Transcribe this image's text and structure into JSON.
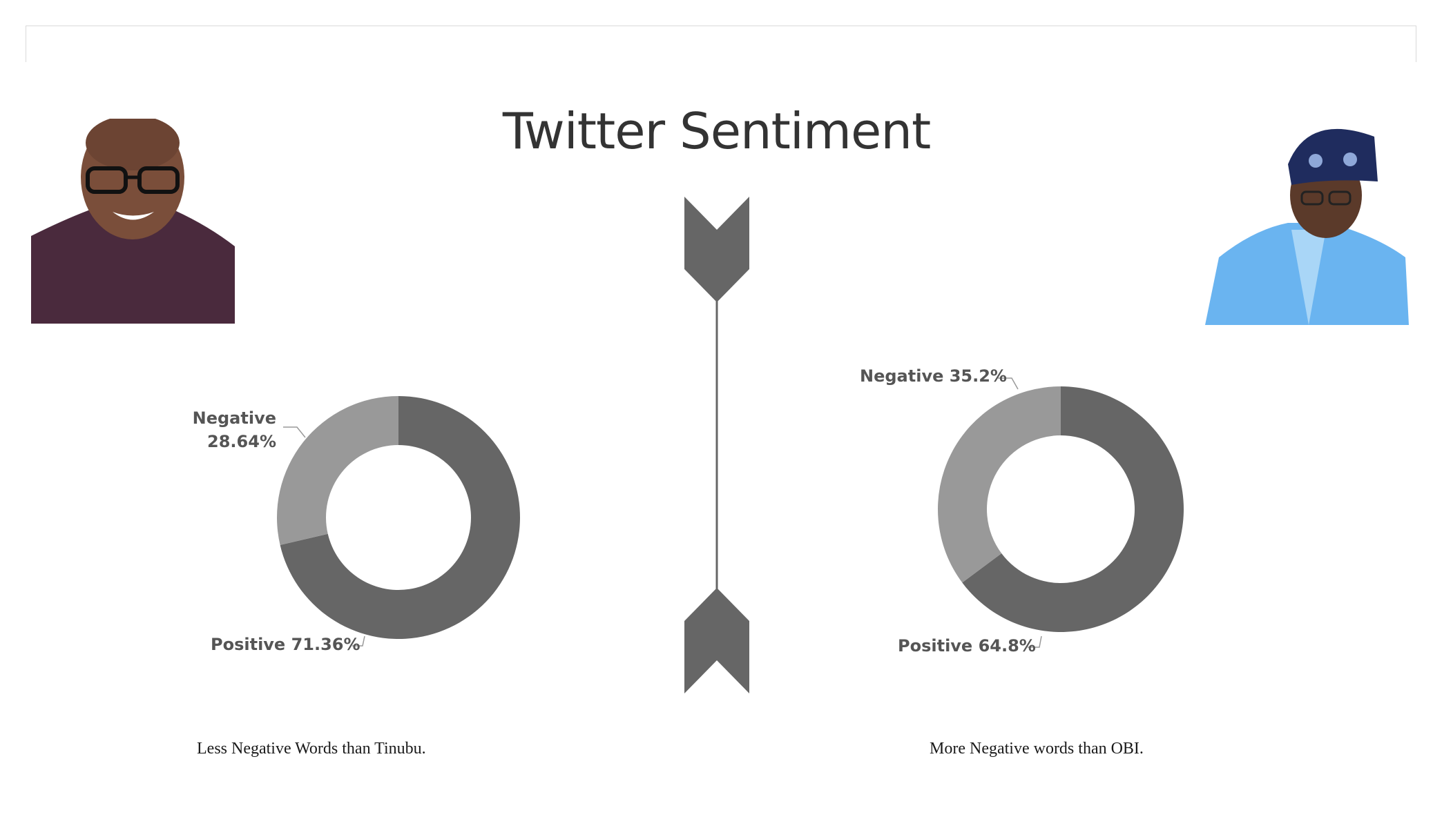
{
  "title": "Twitter Sentiment",
  "colors": {
    "positive": "#666666",
    "negative": "#999999",
    "divider": "#666666",
    "title": "#333333"
  },
  "portraits": {
    "left": {
      "icon": "person-glasses-icon",
      "shirt": "#4a2a3d",
      "skin": "#7a4e3a"
    },
    "right": {
      "icon": "person-cap-icon",
      "cap": "#1f2c5e",
      "robe": "#6ab4f0",
      "skin": "#5b3a2a"
    }
  },
  "chart_data": [
    {
      "type": "pie",
      "variant": "donut",
      "slices": [
        {
          "label": "Negative",
          "value": 28.64,
          "text": "28.64%"
        },
        {
          "label": "Positive",
          "value": 71.36,
          "text": "71.36%"
        }
      ],
      "caption": "Less Negative Words than Tinubu."
    },
    {
      "type": "pie",
      "variant": "donut",
      "slices": [
        {
          "label": "Negative",
          "value": 35.2,
          "text": "35.2%"
        },
        {
          "label": "Positive",
          "value": 64.8,
          "text": "64.8%"
        }
      ],
      "caption": "More Negative words than OBI."
    }
  ]
}
